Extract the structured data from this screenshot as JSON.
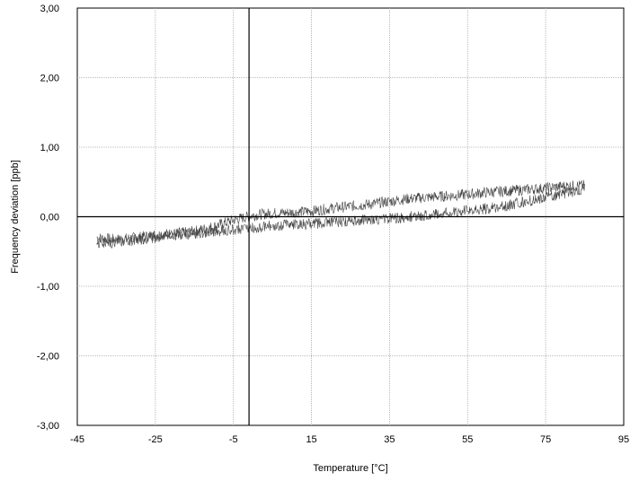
{
  "chart_data": {
    "type": "line",
    "title": "",
    "xlabel": "Temperature [°C]",
    "ylabel": "Frequency deviation [ppb]",
    "xlim": [
      -45,
      95
    ],
    "ylim": [
      -3,
      3
    ],
    "x_ticks": [
      -45,
      -25,
      -5,
      15,
      35,
      55,
      75,
      95
    ],
    "x_tick_labels": [
      "-45",
      "-25",
      "-5",
      "15",
      "35",
      "55",
      "75",
      "95"
    ],
    "y_ticks": [
      -3,
      -2,
      -1,
      0,
      1,
      2,
      3
    ],
    "y_tick_labels": [
      "-3,00",
      "-2,00",
      "-1,00",
      "0,00",
      "1,00",
      "2,00",
      "3,00"
    ],
    "grid": true,
    "legend": "none",
    "series": [
      {
        "x": [
          -40,
          -35,
          -30,
          -25,
          -20,
          -15,
          -10,
          -5,
          0,
          5,
          10,
          15,
          20,
          25,
          30,
          35,
          40,
          45,
          50,
          55,
          60,
          65,
          70,
          75,
          80,
          85
        ],
        "y": [
          -0.3,
          -0.33,
          -0.3,
          -0.26,
          -0.24,
          -0.21,
          -0.14,
          -0.05,
          0.02,
          0.05,
          0.06,
          0.08,
          0.12,
          0.15,
          0.18,
          0.22,
          0.26,
          0.28,
          0.3,
          0.32,
          0.35,
          0.37,
          0.39,
          0.41,
          0.44,
          0.45
        ]
      },
      {
        "x": [
          85,
          80,
          75,
          70,
          65,
          60,
          55,
          50,
          45,
          40,
          35,
          30,
          25,
          20,
          15,
          10,
          5,
          0,
          -5,
          -10,
          -15,
          -20,
          -25,
          -30,
          -35,
          -40
        ],
        "y": [
          0.4,
          0.34,
          0.28,
          0.22,
          0.16,
          0.12,
          0.09,
          0.05,
          0.02,
          0.0,
          -0.03,
          -0.04,
          -0.06,
          -0.08,
          -0.1,
          -0.11,
          -0.13,
          -0.16,
          -0.18,
          -0.21,
          -0.24,
          -0.27,
          -0.3,
          -0.33,
          -0.36,
          -0.4
        ]
      }
    ],
    "reference_lines": {
      "x": -1,
      "y": 0
    },
    "colors": {
      "line": "#444444",
      "grid": "#a8a8a8",
      "axis": "#000000"
    }
  }
}
